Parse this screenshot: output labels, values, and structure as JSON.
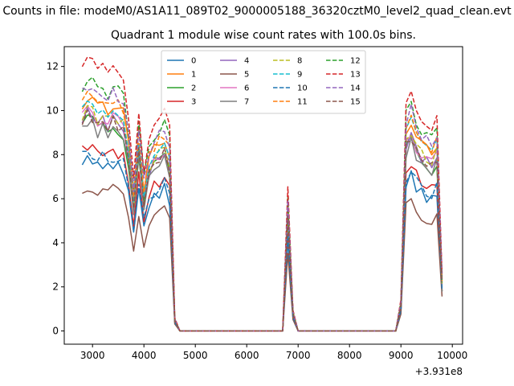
{
  "chart_data": {
    "type": "line",
    "suptitle": "Counts in file: modeM0/AS1A11_089T02_9000005188_36320cztM0_level2_quad_clean.evt",
    "title": "Quadrant 1 module wise count rates with 100.0s bins.",
    "xlabel": "",
    "ylabel": "",
    "x_offset_label": "+3.931e8",
    "x_ticks": [
      3000,
      4000,
      5000,
      6000,
      7000,
      8000,
      9000,
      10000
    ],
    "x_tick_labels": [
      "3000",
      "4000",
      "5000",
      "6000",
      "7000",
      "8000",
      "9000",
      "10000"
    ],
    "y_ticks": [
      0,
      2,
      4,
      6,
      8,
      10,
      12
    ],
    "y_tick_labels": [
      "0",
      "2",
      "4",
      "6",
      "8",
      "10",
      "12"
    ],
    "xlim": [
      2450,
      10200
    ],
    "ylim": [
      -0.6,
      12.9
    ],
    "grid": false,
    "legend_position": "top-center",
    "legend_columns": 4,
    "x": [
      2800,
      2900,
      3000,
      3100,
      3200,
      3300,
      3400,
      3500,
      3600,
      3700,
      3800,
      3900,
      4000,
      4100,
      4200,
      4300,
      4400,
      4500,
      4600,
      4700,
      6700,
      6800,
      6900,
      7000,
      8900,
      9000,
      9100,
      9200,
      9300,
      9400,
      9500,
      9600,
      9700,
      9800
    ],
    "series": [
      {
        "name": "0",
        "color": "#1f77b4",
        "dashed": false,
        "base": 7.6
      },
      {
        "name": "1",
        "color": "#ff7f0e",
        "dashed": false,
        "base": 10.3
      },
      {
        "name": "2",
        "color": "#2ca02c",
        "dashed": false,
        "base": 9.3
      },
      {
        "name": "3",
        "color": "#d62728",
        "dashed": false,
        "base": 8.2
      },
      {
        "name": "4",
        "color": "#9467bd",
        "dashed": false,
        "base": 9.6
      },
      {
        "name": "5",
        "color": "#8c564b",
        "dashed": false,
        "base": 6.4
      },
      {
        "name": "6",
        "color": "#e377c2",
        "dashed": false,
        "base": 9.7
      },
      {
        "name": "7",
        "color": "#7f7f7f",
        "dashed": false,
        "base": 9.2
      },
      {
        "name": "8",
        "color": "#bcbd22",
        "dashed": true,
        "base": 9.8
      },
      {
        "name": "9",
        "color": "#17becf",
        "dashed": true,
        "base": 10.2
      },
      {
        "name": "10",
        "color": "#1f77b4",
        "dashed": true,
        "base": 7.9
      },
      {
        "name": "11",
        "color": "#ff7f0e",
        "dashed": true,
        "base": 10.5
      },
      {
        "name": "12",
        "color": "#2ca02c",
        "dashed": true,
        "base": 11.1
      },
      {
        "name": "13",
        "color": "#d62728",
        "dashed": true,
        "base": 11.9
      },
      {
        "name": "14",
        "color": "#9467bd",
        "dashed": true,
        "base": 10.8
      },
      {
        "name": "15",
        "color": "#8c564b",
        "dashed": true,
        "base": 9.5
      }
    ],
    "shape": [
      1.0,
      1.03,
      1.02,
      0.98,
      1.0,
      0.97,
      1.0,
      0.98,
      0.96,
      0.82,
      0.6,
      0.85,
      0.62,
      0.75,
      0.8,
      0.82,
      0.85,
      0.78,
      0.05,
      0.0,
      0.0,
      0.55,
      0.08,
      0.0,
      0.0,
      0.12,
      0.88,
      0.93,
      0.86,
      0.82,
      0.8,
      0.78,
      0.83,
      0.22
    ]
  }
}
